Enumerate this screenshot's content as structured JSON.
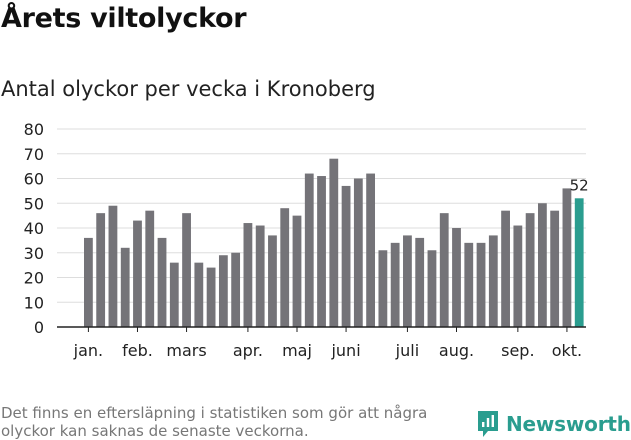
{
  "title": "Årets viltolyckor",
  "chart_data": {
    "type": "bar",
    "title": "Antal olyckor per vecka i Kronoberg",
    "xlabel": "",
    "ylabel": "",
    "ylim": [
      0,
      80
    ],
    "yticks": [
      0,
      10,
      20,
      30,
      40,
      50,
      60,
      70,
      80
    ],
    "grid": true,
    "values": [
      36,
      46,
      49,
      32,
      43,
      47,
      36,
      26,
      46,
      26,
      24,
      29,
      30,
      42,
      41,
      37,
      48,
      45,
      62,
      61,
      68,
      57,
      60,
      62,
      31,
      34,
      37,
      36,
      31,
      46,
      40,
      34,
      34,
      37,
      47,
      41,
      46,
      50,
      47,
      56,
      52
    ],
    "month_labels": [
      {
        "label": "jan.",
        "week_index": 0
      },
      {
        "label": "feb.",
        "week_index": 4
      },
      {
        "label": "mars",
        "week_index": 8
      },
      {
        "label": "apr.",
        "week_index": 13
      },
      {
        "label": "maj",
        "week_index": 17
      },
      {
        "label": "juni",
        "week_index": 21
      },
      {
        "label": "juli",
        "week_index": 26
      },
      {
        "label": "aug.",
        "week_index": 30
      },
      {
        "label": "sep.",
        "week_index": 35
      },
      {
        "label": "okt.",
        "week_index": 39
      }
    ],
    "highlight_index": 40,
    "highlight_label": "52",
    "colors": {
      "bar": "#747378",
      "highlight": "#2a9d8f",
      "grid": "#dddddd",
      "axis": "#222222"
    }
  },
  "footnote": "Det finns en eftersläpning i statistiken som gör att några olyckor kan saknas de senaste veckorna.",
  "brand": {
    "name": "Newsworthy",
    "icon": "newsworthy-logo-icon"
  }
}
